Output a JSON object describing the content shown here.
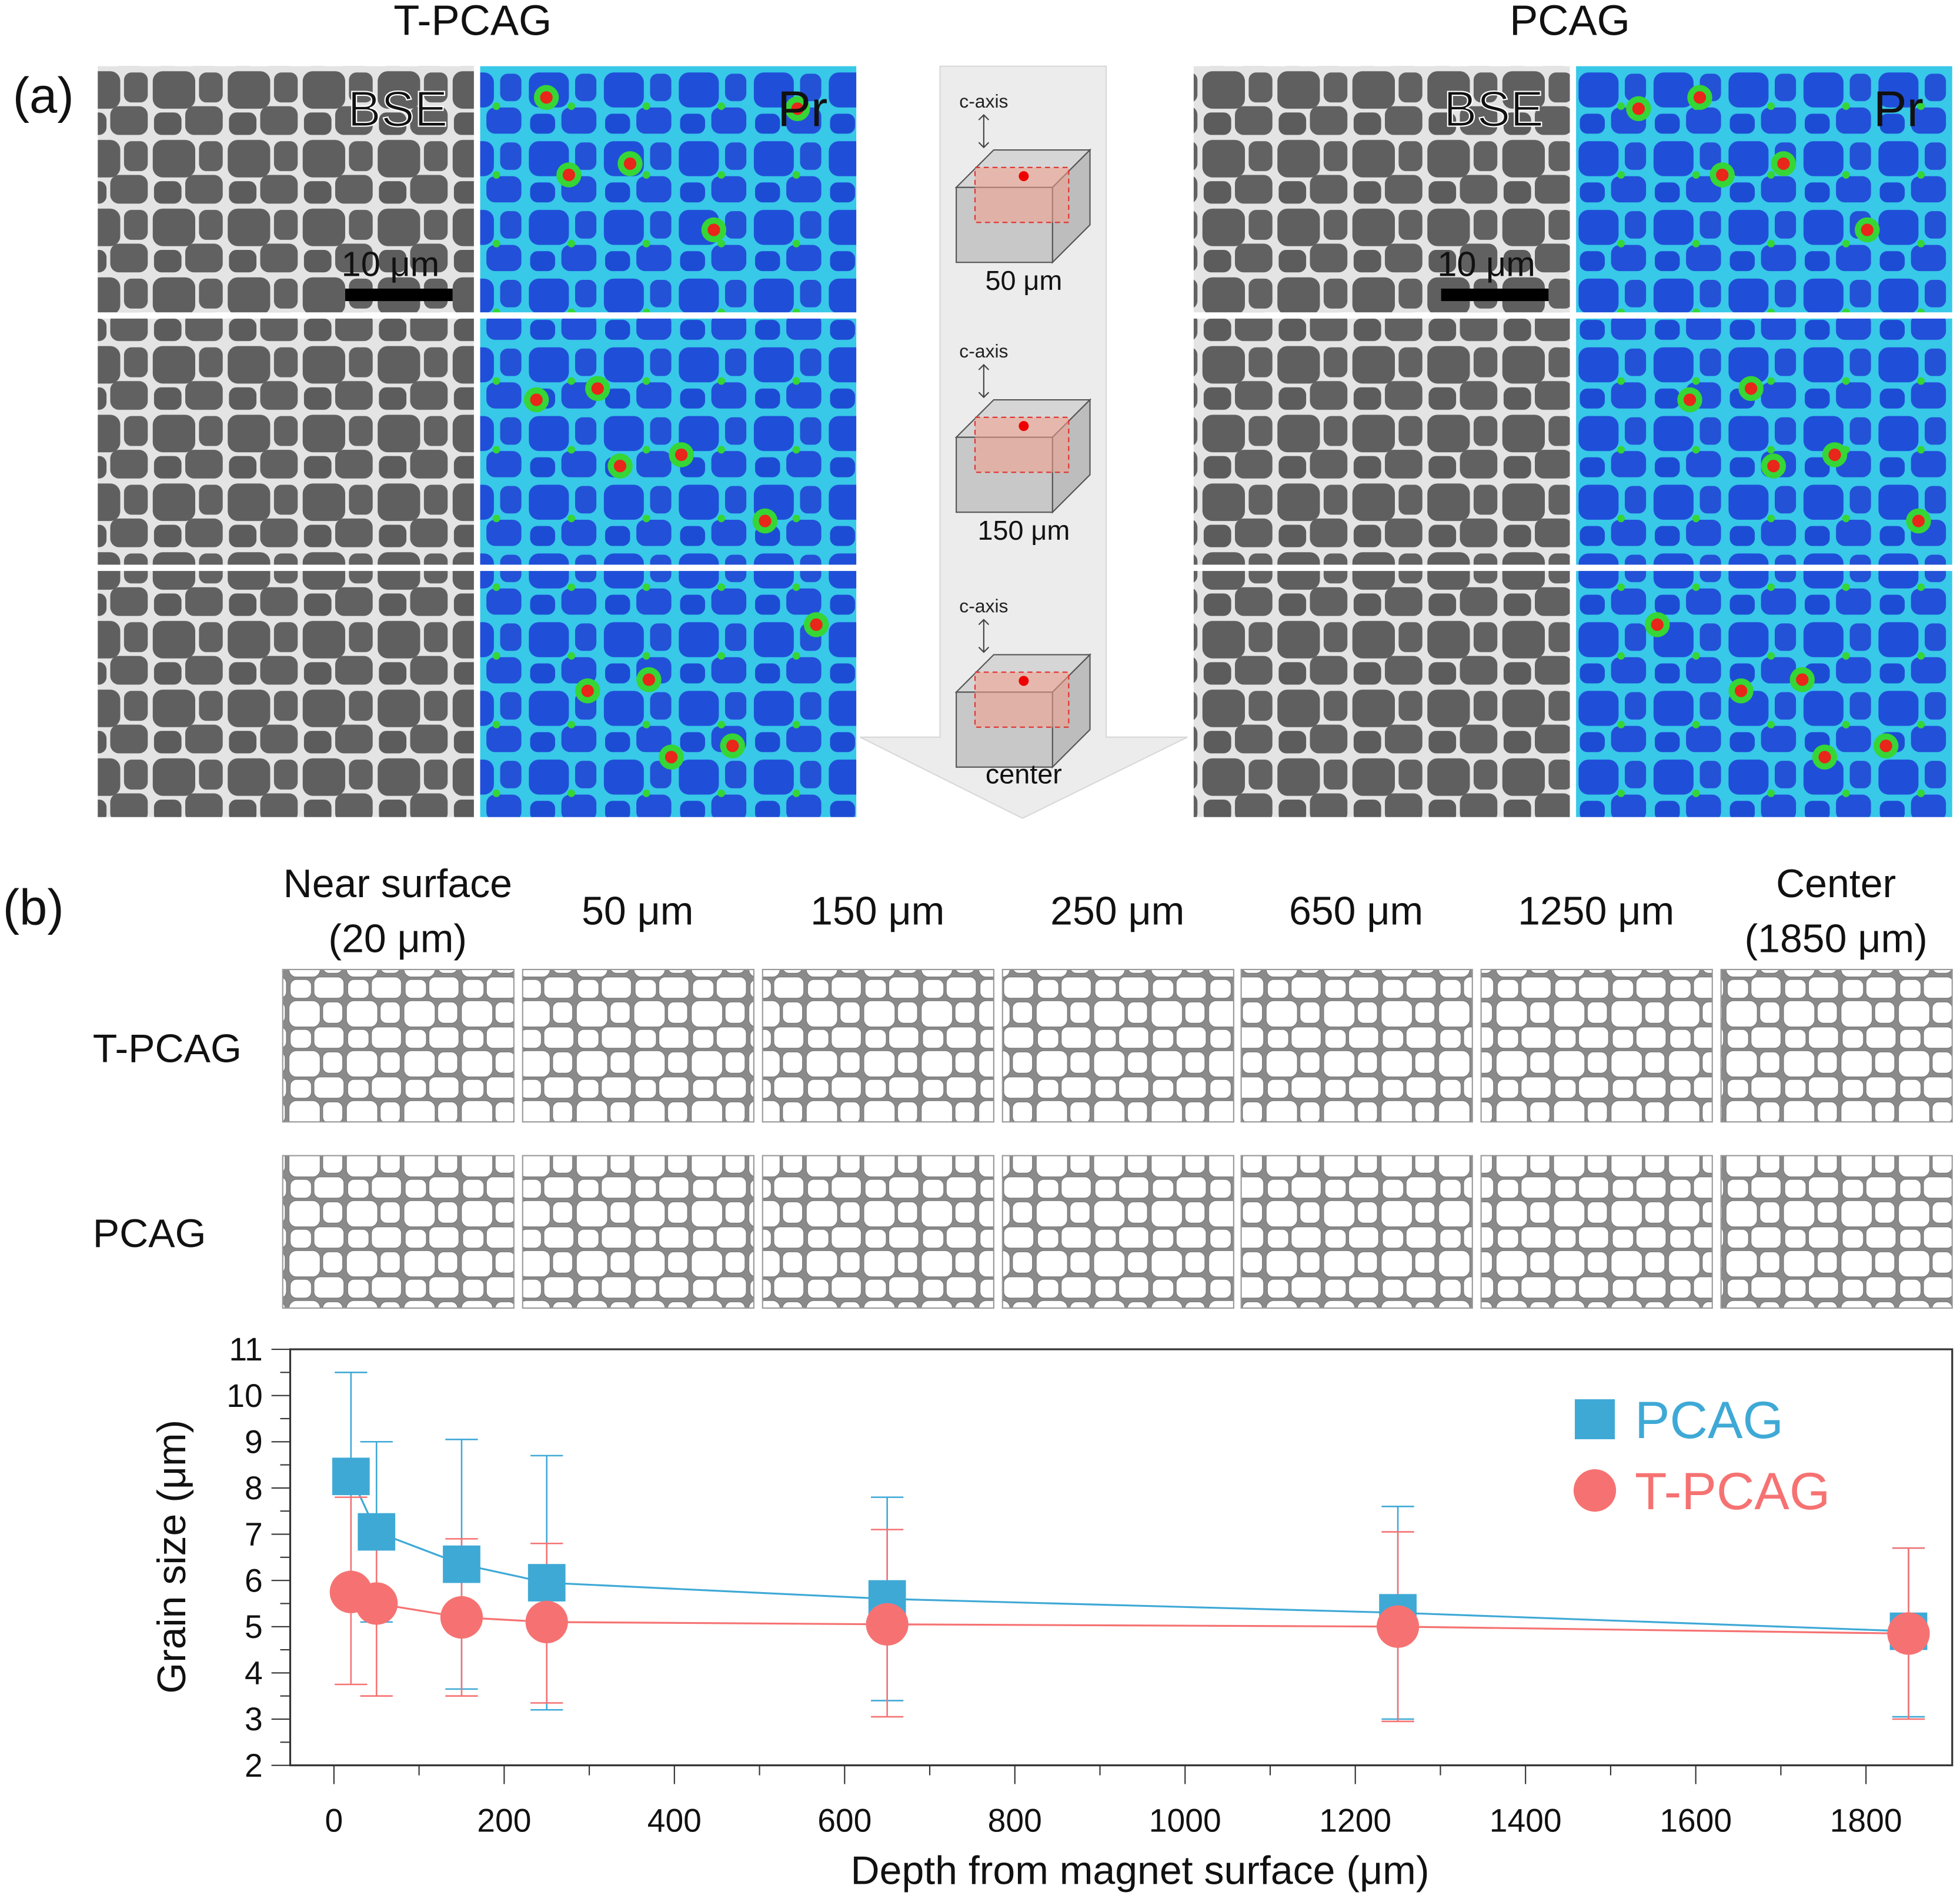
{
  "panel_a": {
    "label": "(a)",
    "left_title": "T-PCAG",
    "right_title": "PCAG",
    "bse_label": "BSE",
    "pr_label": "Pr",
    "scale_bar": "10 μm",
    "schematic": {
      "axis_label": "c-axis",
      "depths": [
        "50 μm",
        "150 μm",
        "center"
      ]
    },
    "colors": {
      "map_blue": "#1f4fd8",
      "map_green": "#35d635",
      "map_red": "#e8261a",
      "bse_grain": "#5e5e5e",
      "bse_boundary": "#e6e6e6"
    }
  },
  "panel_b": {
    "label": "(b)",
    "columns": [
      [
        "Near surface",
        "(20 μm)"
      ],
      [
        "50 μm"
      ],
      [
        "150 μm"
      ],
      [
        "250 μm"
      ],
      [
        "650 μm"
      ],
      [
        "1250 μm"
      ],
      [
        "Center",
        "(1850 μm)"
      ]
    ],
    "rows": [
      "T-PCAG",
      "PCAG"
    ]
  },
  "chart_data": {
    "type": "scatter",
    "xlabel": "Depth from magnet surface (μm)",
    "ylabel": "Grain size (μm)",
    "xlim": [
      -50,
      1950
    ],
    "ylim": [
      2,
      11
    ],
    "xticks": [
      "0",
      "200",
      "400",
      "600",
      "800",
      "1000",
      "1200",
      "1400",
      "1600",
      "1800"
    ],
    "yticks": [
      "2",
      "3",
      "4",
      "5",
      "6",
      "7",
      "8",
      "9",
      "10",
      "11"
    ],
    "legend_position": "top-right",
    "x": [
      20,
      50,
      150,
      250,
      650,
      1250,
      1850
    ],
    "series": [
      {
        "name": "PCAG",
        "color": "#3fa9d6",
        "marker": "square",
        "values": [
          8.25,
          7.05,
          6.35,
          5.95,
          5.6,
          5.3,
          4.9
        ],
        "err_low": [
          6.0,
          5.1,
          3.65,
          3.2,
          3.4,
          3.0,
          3.05
        ],
        "err_high": [
          10.5,
          9.0,
          9.05,
          8.7,
          7.8,
          7.6,
          6.7
        ]
      },
      {
        "name": "T-PCAG",
        "color": "#f67272",
        "marker": "circle",
        "values": [
          5.75,
          5.5,
          5.2,
          5.1,
          5.05,
          5.0,
          4.85
        ],
        "err_low": [
          3.75,
          3.5,
          3.5,
          3.35,
          3.05,
          2.95,
          3.0
        ],
        "err_high": [
          7.8,
          7.4,
          6.9,
          6.8,
          7.1,
          7.05,
          6.7
        ]
      }
    ]
  }
}
